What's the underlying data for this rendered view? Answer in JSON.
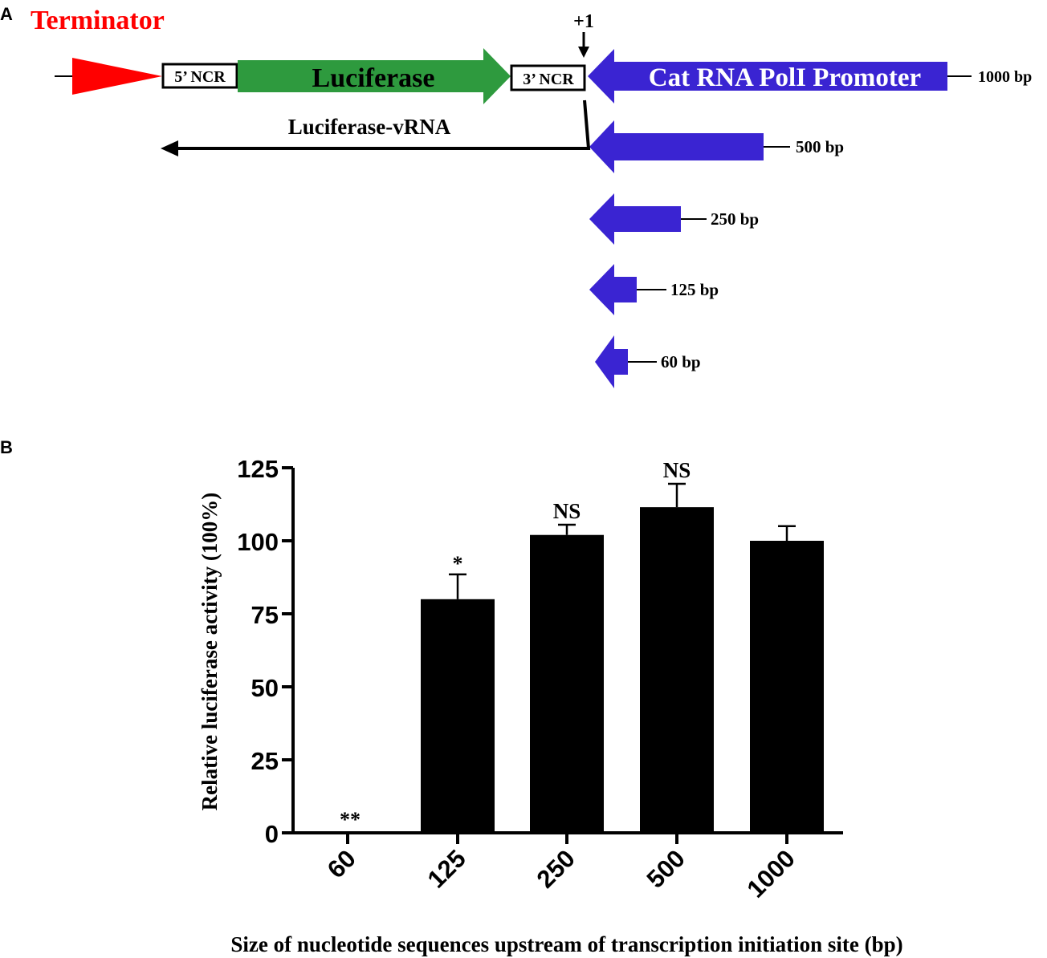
{
  "panel_a": {
    "label": "A",
    "terminator_label": "Terminator",
    "plus_one_label": "+1",
    "ncr5_label": "5’ NCR",
    "luciferase_label": "Luciferase",
    "ncr3_label": "3’ NCR",
    "promoter_label": "Cat RNA PolI Promoter",
    "vrna_label": "Luciferase-vRNA",
    "fragments": [
      {
        "label": "1000 bp",
        "bp": 1000
      },
      {
        "label": "500 bp",
        "bp": 500
      },
      {
        "label": "250 bp",
        "bp": 250
      },
      {
        "label": "125 bp",
        "bp": 125
      },
      {
        "label": "60 bp",
        "bp": 60
      }
    ],
    "colors": {
      "terminator": "#ff0000",
      "luciferase": "#2e9a3e",
      "promoter": "#3a24d2"
    }
  },
  "panel_b": {
    "label": "B"
  },
  "chart_data": {
    "type": "bar",
    "categories": [
      "60",
      "125",
      "250",
      "500",
      "1000"
    ],
    "values": [
      0,
      80,
      102,
      111.5,
      100
    ],
    "errors": [
      0,
      8.5,
      3.5,
      8,
      5
    ],
    "annotations": [
      "**",
      "*",
      "NS",
      "NS",
      ""
    ],
    "ylabel": "Relative luciferase activity (100%)",
    "xlabel": "Size of nucleotide sequences upstream of transcription initiation site (bp)",
    "ylim": [
      0,
      125
    ],
    "yticks": [
      0,
      25,
      50,
      75,
      100,
      125
    ],
    "bar_color": "#000000",
    "grid": false
  }
}
